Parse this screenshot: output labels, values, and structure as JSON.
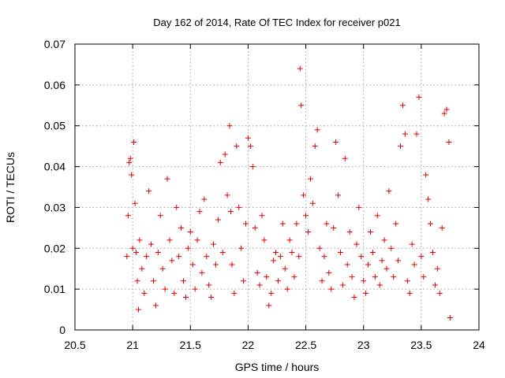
{
  "chart_data": {
    "type": "scatter",
    "title": "Day 162 of 2014, Rate Of TEC Index for receiver p021",
    "xlabel": "GPS time / hours",
    "ylabel": "ROTI / TECUs",
    "xlim": [
      20.5,
      24
    ],
    "ylim": [
      0,
      0.07
    ],
    "xticks": [
      20.5,
      21,
      21.5,
      22,
      22.5,
      23,
      23.5,
      24
    ],
    "xtick_labels": [
      "20.5",
      "21",
      "21.5",
      "22",
      "22.5",
      "23",
      "23.5",
      "24"
    ],
    "yticks": [
      0,
      0.01,
      0.02,
      0.03,
      0.04,
      0.05,
      0.06,
      0.07
    ],
    "ytick_labels": [
      "0",
      "0.01",
      "0.02",
      "0.03",
      "0.04",
      "0.05",
      "0.06",
      "0.07"
    ],
    "grid": true,
    "marker": "+",
    "color": "#e00000",
    "series": [
      {
        "name": "p021",
        "x": [
          20.95,
          20.96,
          20.97,
          20.98,
          20.99,
          21.0,
          21.01,
          21.02,
          21.03,
          21.04,
          21.05,
          21.06,
          21.08,
          21.1,
          21.12,
          21.14,
          21.16,
          21.18,
          21.2,
          21.22,
          21.24,
          21.26,
          21.28,
          21.3,
          21.32,
          21.34,
          21.36,
          21.38,
          21.4,
          21.42,
          21.44,
          21.46,
          21.48,
          21.5,
          21.52,
          21.54,
          21.56,
          21.58,
          21.6,
          21.62,
          21.64,
          21.66,
          21.68,
          21.7,
          21.72,
          21.74,
          21.76,
          21.78,
          21.8,
          21.82,
          21.84,
          21.85,
          21.86,
          21.88,
          21.9,
          21.92,
          21.94,
          21.96,
          21.98,
          22.0,
          22.02,
          22.04,
          22.06,
          22.08,
          22.1,
          22.12,
          22.14,
          22.16,
          22.18,
          22.2,
          22.22,
          22.24,
          22.26,
          22.28,
          22.3,
          22.32,
          22.34,
          22.36,
          22.38,
          22.4,
          22.42,
          22.44,
          22.45,
          22.46,
          22.48,
          22.5,
          22.52,
          22.54,
          22.56,
          22.58,
          22.6,
          22.62,
          22.64,
          22.66,
          22.68,
          22.7,
          22.72,
          22.74,
          22.76,
          22.78,
          22.8,
          22.82,
          22.84,
          22.86,
          22.88,
          22.9,
          22.92,
          22.94,
          22.96,
          22.98,
          23.0,
          23.02,
          23.04,
          23.06,
          23.08,
          23.1,
          23.12,
          23.14,
          23.16,
          23.18,
          23.2,
          23.22,
          23.24,
          23.26,
          23.28,
          23.3,
          23.32,
          23.34,
          23.36,
          23.38,
          23.4,
          23.42,
          23.44,
          23.46,
          23.48,
          23.5,
          23.52,
          23.54,
          23.56,
          23.58,
          23.6,
          23.62,
          23.64,
          23.66,
          23.68,
          23.7,
          23.72,
          23.74,
          23.75
        ],
        "y": [
          0.018,
          0.028,
          0.041,
          0.042,
          0.038,
          0.02,
          0.046,
          0.031,
          0.019,
          0.012,
          0.005,
          0.022,
          0.015,
          0.009,
          0.018,
          0.034,
          0.021,
          0.012,
          0.006,
          0.019,
          0.028,
          0.015,
          0.01,
          0.037,
          0.022,
          0.017,
          0.009,
          0.03,
          0.018,
          0.025,
          0.012,
          0.008,
          0.02,
          0.024,
          0.016,
          0.01,
          0.022,
          0.029,
          0.014,
          0.032,
          0.018,
          0.011,
          0.008,
          0.021,
          0.016,
          0.027,
          0.041,
          0.019,
          0.043,
          0.033,
          0.05,
          0.029,
          0.016,
          0.009,
          0.045,
          0.03,
          0.02,
          0.012,
          0.026,
          0.047,
          0.045,
          0.04,
          0.025,
          0.014,
          0.011,
          0.028,
          0.022,
          0.013,
          0.006,
          0.009,
          0.017,
          0.019,
          0.012,
          0.018,
          0.026,
          0.015,
          0.01,
          0.022,
          0.019,
          0.013,
          0.026,
          0.018,
          0.064,
          0.055,
          0.033,
          0.028,
          0.024,
          0.037,
          0.031,
          0.045,
          0.049,
          0.02,
          0.012,
          0.018,
          0.026,
          0.014,
          0.01,
          0.025,
          0.046,
          0.033,
          0.019,
          0.011,
          0.042,
          0.016,
          0.024,
          0.013,
          0.008,
          0.021,
          0.03,
          0.018,
          0.012,
          0.009,
          0.016,
          0.024,
          0.019,
          0.013,
          0.028,
          0.011,
          0.017,
          0.022,
          0.015,
          0.034,
          0.02,
          0.013,
          0.026,
          0.017,
          0.045,
          0.055,
          0.048,
          0.012,
          0.009,
          0.021,
          0.016,
          0.048,
          0.057,
          0.018,
          0.013,
          0.038,
          0.032,
          0.026,
          0.019,
          0.011,
          0.015,
          0.009,
          0.025,
          0.053,
          0.054,
          0.046,
          0.003
        ]
      }
    ]
  }
}
